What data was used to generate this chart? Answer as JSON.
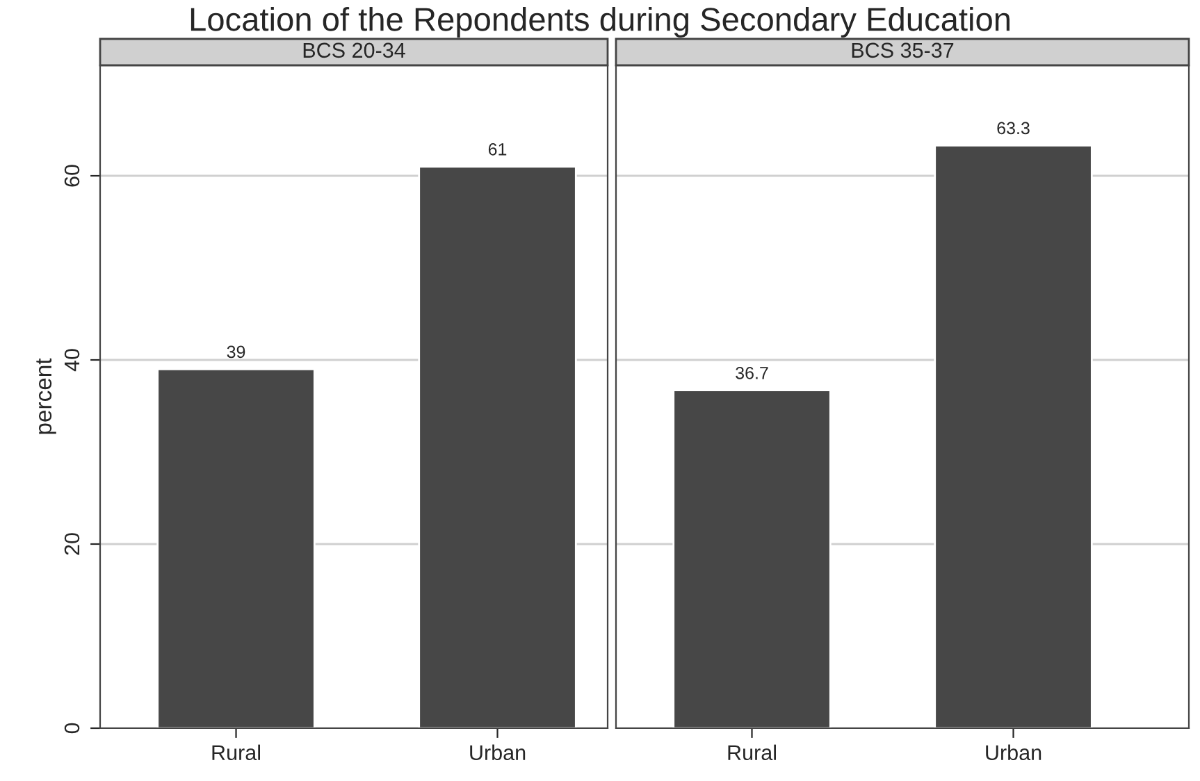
{
  "chart_data": [
    {
      "type": "bar",
      "title": "Location of the Repondents during Secondary Education",
      "subtitle": "BCS 20-34",
      "ylabel": "percent",
      "categories": [
        "Rural",
        "Urban"
      ],
      "values": [
        39,
        61
      ],
      "color": "#474747",
      "ylim": [
        0,
        72
      ],
      "yticks": [
        0,
        20,
        40,
        60
      ],
      "grid": "y",
      "data_labels": true,
      "legend": false
    },
    {
      "type": "bar",
      "subtitle": "BCS 35-37",
      "categories": [
        "Rural",
        "Urban"
      ],
      "values": [
        36.7,
        63.3
      ],
      "color": "#474747",
      "ylim": [
        0,
        72
      ],
      "yticks": [
        0,
        20,
        40,
        60
      ],
      "grid": "y",
      "data_labels": true,
      "legend": false,
      "tick_labels": "x"
    }
  ]
}
